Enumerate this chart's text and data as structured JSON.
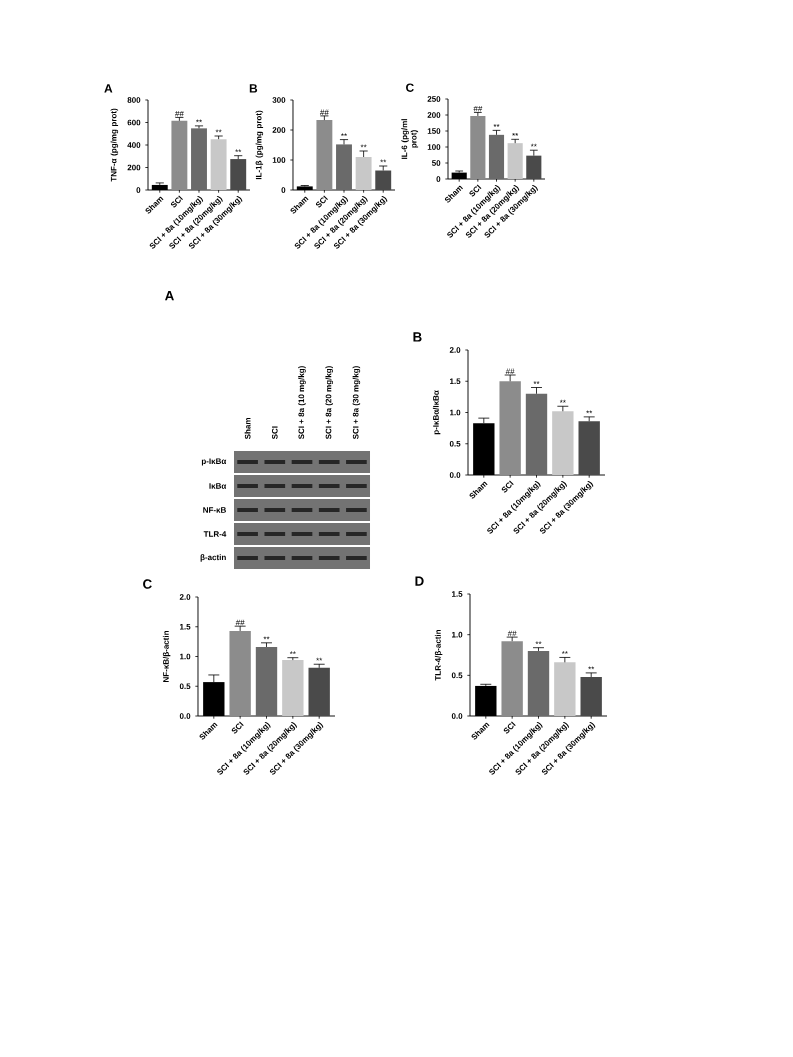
{
  "chart_data": [
    {
      "type": "bar",
      "title": "A",
      "ylabel": "TNF-α (pg/mg prot)",
      "categories": [
        "Sham",
        "SCI",
        "SCI + 8a (10mg/kg)",
        "SCI + 8a (20mg/kg)",
        "SCI + 8a (30mg/kg)"
      ],
      "values": [
        45,
        615,
        548,
        452,
        275
      ],
      "errors": [
        18,
        30,
        22,
        28,
        30
      ],
      "colors": [
        "#000000",
        "#8c8c8c",
        "#6a6a6a",
        "#c8c8c8",
        "#4a4a4a"
      ],
      "ylim": [
        0,
        800
      ],
      "yticks": [
        0,
        200,
        400,
        600,
        800
      ],
      "annotations": [
        {
          "text": "##",
          "x": "SCI",
          "y": 645
        },
        {
          "text": "**",
          "x": "SCI + 8a (10mg/kg)",
          "y": 570
        },
        {
          "text": "**",
          "x": "SCI + 8a (20mg/kg)",
          "y": 480
        },
        {
          "text": "**",
          "x": "SCI + 8a (30mg/kg)",
          "y": 305
        }
      ]
    },
    {
      "type": "bar",
      "title": "B",
      "ylabel": "IL-1β (pg/mg prot)",
      "categories": [
        "Sham",
        "SCI",
        "SCI + 8a (10mg/kg)",
        "SCI + 8a (20mg/kg)",
        "SCI + 8a (30mg/kg)"
      ],
      "values": [
        12,
        233,
        152,
        110,
        65
      ],
      "errors": [
        3,
        14,
        16,
        20,
        15
      ],
      "colors": [
        "#000000",
        "#8c8c8c",
        "#6a6a6a",
        "#c8c8c8",
        "#4a4a4a"
      ],
      "ylim": [
        0,
        300
      ],
      "yticks": [
        0,
        100,
        200,
        300
      ],
      "annotations": [
        {
          "text": "##",
          "x": "SCI",
          "y": 247
        },
        {
          "text": "**",
          "x": "SCI + 8a (10mg/kg)",
          "y": 168
        },
        {
          "text": "**",
          "x": "SCI + 8a (20mg/kg)",
          "y": 130
        },
        {
          "text": "**",
          "x": "SCI + 8a (30mg/kg)",
          "y": 80
        }
      ]
    },
    {
      "type": "bar",
      "title": "C",
      "ylabel": "IL-6 (pg/ml prot)",
      "categories": [
        "Sham",
        "SCI",
        "SCI + 8a (10mg/kg)",
        "SCI + 8a (20mg/kg)",
        "SCI + 8a (30mg/kg)"
      ],
      "values": [
        20,
        197,
        138,
        112,
        73
      ],
      "errors": [
        5,
        11,
        14,
        12,
        17
      ],
      "colors": [
        "#000000",
        "#8c8c8c",
        "#6a6a6a",
        "#c8c8c8",
        "#4a4a4a"
      ],
      "ylim": [
        0,
        250
      ],
      "yticks": [
        0,
        50,
        100,
        150,
        200,
        250
      ],
      "annotations": [
        {
          "text": "##",
          "x": "SCI",
          "y": 208
        },
        {
          "text": "**",
          "x": "SCI + 8a (10mg/kg)",
          "y": 152
        },
        {
          "text": "**",
          "x": "SCI + 8a (20mg/kg)",
          "y": 124
        },
        {
          "text": "**",
          "x": "SCI + 8a (30mg/kg)",
          "y": 90
        }
      ]
    },
    {
      "type": "other",
      "title": "A",
      "categories": [
        "Sham",
        "SCI",
        "SCI + 8a (10 mg/kg)",
        "SCI + 8a (20 mg/kg)",
        "SCI + 8a (30 mg/kg)"
      ],
      "annotations": [
        "p-IκBα",
        "IκBα",
        "NF-κB",
        "TLR-4",
        "β-actin"
      ]
    },
    {
      "type": "bar",
      "title": "B",
      "ylabel": "p-IκBα/IκBα",
      "categories": [
        "Sham",
        "SCI",
        "SCI + 8a (10mg/kg)",
        "SCI + 8a (20mg/kg)",
        "SCI + 8a (30mg/kg)"
      ],
      "values": [
        0.83,
        1.5,
        1.3,
        1.02,
        0.86
      ],
      "errors": [
        0.08,
        0.1,
        0.1,
        0.08,
        0.07
      ],
      "colors": [
        "#000000",
        "#8c8c8c",
        "#6a6a6a",
        "#c8c8c8",
        "#4a4a4a"
      ],
      "ylim": [
        0,
        2
      ],
      "yticks": [
        {
          "value": 0,
          "label": "0.0"
        },
        0.5,
        {
          "value": 1,
          "label": "1.0"
        },
        1.5,
        {
          "value": 2,
          "label": "2.0"
        }
      ],
      "annotations": [
        {
          "text": "##",
          "x": "SCI",
          "y": 1.6
        },
        {
          "text": "**",
          "x": "SCI + 8a (10mg/kg)",
          "y": 1.4
        },
        {
          "text": "**",
          "x": "SCI + 8a (20mg/kg)",
          "y": 1.1
        },
        {
          "text": "**",
          "x": "SCI + 8a (30mg/kg)",
          "y": 0.93
        }
      ]
    },
    {
      "type": "bar",
      "title": "C",
      "ylabel": "NF-κB/β-actin",
      "categories": [
        "Sham",
        "SCI",
        "SCI + 8a (10mg/kg)",
        "SCI + 8a (20mg/kg)",
        "SCI + 8a (30mg/kg)"
      ],
      "values": [
        0.57,
        1.43,
        1.16,
        0.94,
        0.81
      ],
      "errors": [
        0.12,
        0.08,
        0.07,
        0.04,
        0.06
      ],
      "colors": [
        "#000000",
        "#8c8c8c",
        "#6a6a6a",
        "#c8c8c8",
        "#4a4a4a"
      ],
      "ylim": [
        0,
        2
      ],
      "yticks": [
        {
          "value": 0,
          "label": "0.0"
        },
        0.5,
        {
          "value": 1,
          "label": "1.0"
        },
        1.5,
        {
          "value": 2,
          "label": "2.0"
        }
      ],
      "annotations": [
        {
          "text": "##",
          "x": "SCI",
          "y": 1.51
        },
        {
          "text": "**",
          "x": "SCI + 8a (10mg/kg)",
          "y": 1.23
        },
        {
          "text": "**",
          "x": "SCI + 8a (20mg/kg)",
          "y": 0.98
        },
        {
          "text": "**",
          "x": "SCI + 8a (30mg/kg)",
          "y": 0.87
        }
      ]
    },
    {
      "type": "bar",
      "title": "D",
      "ylabel": "TLR-4/β-actin",
      "categories": [
        "Sham",
        "SCI",
        "SCI + 8a (10mg/kg)",
        "SCI + 8a (20mg/kg)",
        "SCI + 8a (30mg/kg)"
      ],
      "values": [
        0.37,
        0.92,
        0.8,
        0.66,
        0.48
      ],
      "errors": [
        0.02,
        0.05,
        0.04,
        0.06,
        0.05
      ],
      "colors": [
        "#000000",
        "#8c8c8c",
        "#6a6a6a",
        "#c8c8c8",
        "#4a4a4a"
      ],
      "ylim": [
        0,
        1.5
      ],
      "yticks": [
        {
          "value": 0,
          "label": "0.0"
        },
        0.5,
        {
          "value": 1,
          "label": "1.0"
        },
        1.5
      ],
      "annotations": [
        {
          "text": "##",
          "x": "SCI",
          "y": 0.97
        },
        {
          "text": "**",
          "x": "SCI + 8a (10mg/kg)",
          "y": 0.84
        },
        {
          "text": "**",
          "x": "SCI + 8a (20mg/kg)",
          "y": 0.72
        },
        {
          "text": "**",
          "x": "SCI + 8a (30mg/kg)",
          "y": 0.53
        }
      ]
    }
  ]
}
